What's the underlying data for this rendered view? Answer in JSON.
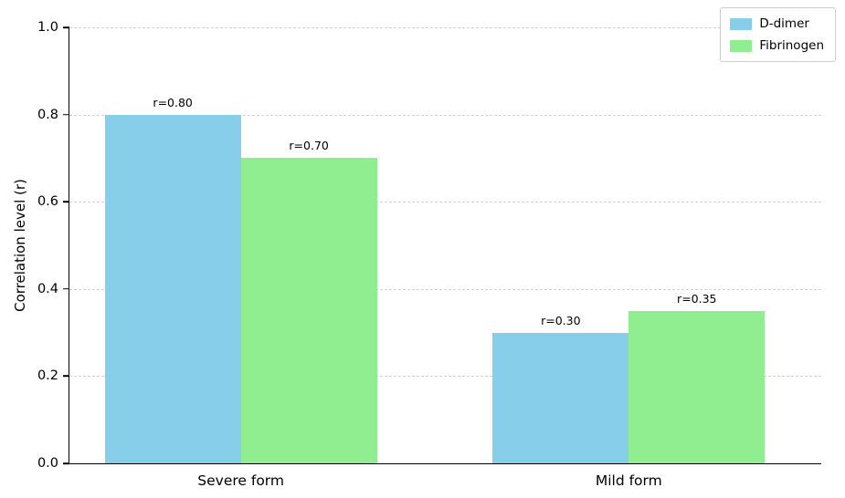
{
  "chart_data": {
    "type": "bar",
    "title": "",
    "categories": [
      "Severe form",
      "Mild form"
    ],
    "series": [
      {
        "name": "D-dimer",
        "color": "#87CEEB",
        "values": [
          0.8,
          0.3
        ],
        "labels": [
          "r=0.80",
          "r=0.30"
        ]
      },
      {
        "name": "Fibrinogen",
        "color": "#90EE90",
        "values": [
          0.7,
          0.35
        ],
        "labels": [
          "r=0.70",
          "r=0.35"
        ]
      }
    ],
    "xlabel": "",
    "ylabel": "Correlation level (r)",
    "ylim": [
      0,
      1.0
    ],
    "yticks": [
      "0.0",
      "0.2",
      "0.4",
      "0.6",
      "0.8",
      "1.0"
    ],
    "grid": "horizontal-dashed",
    "legend_position": "upper right"
  }
}
